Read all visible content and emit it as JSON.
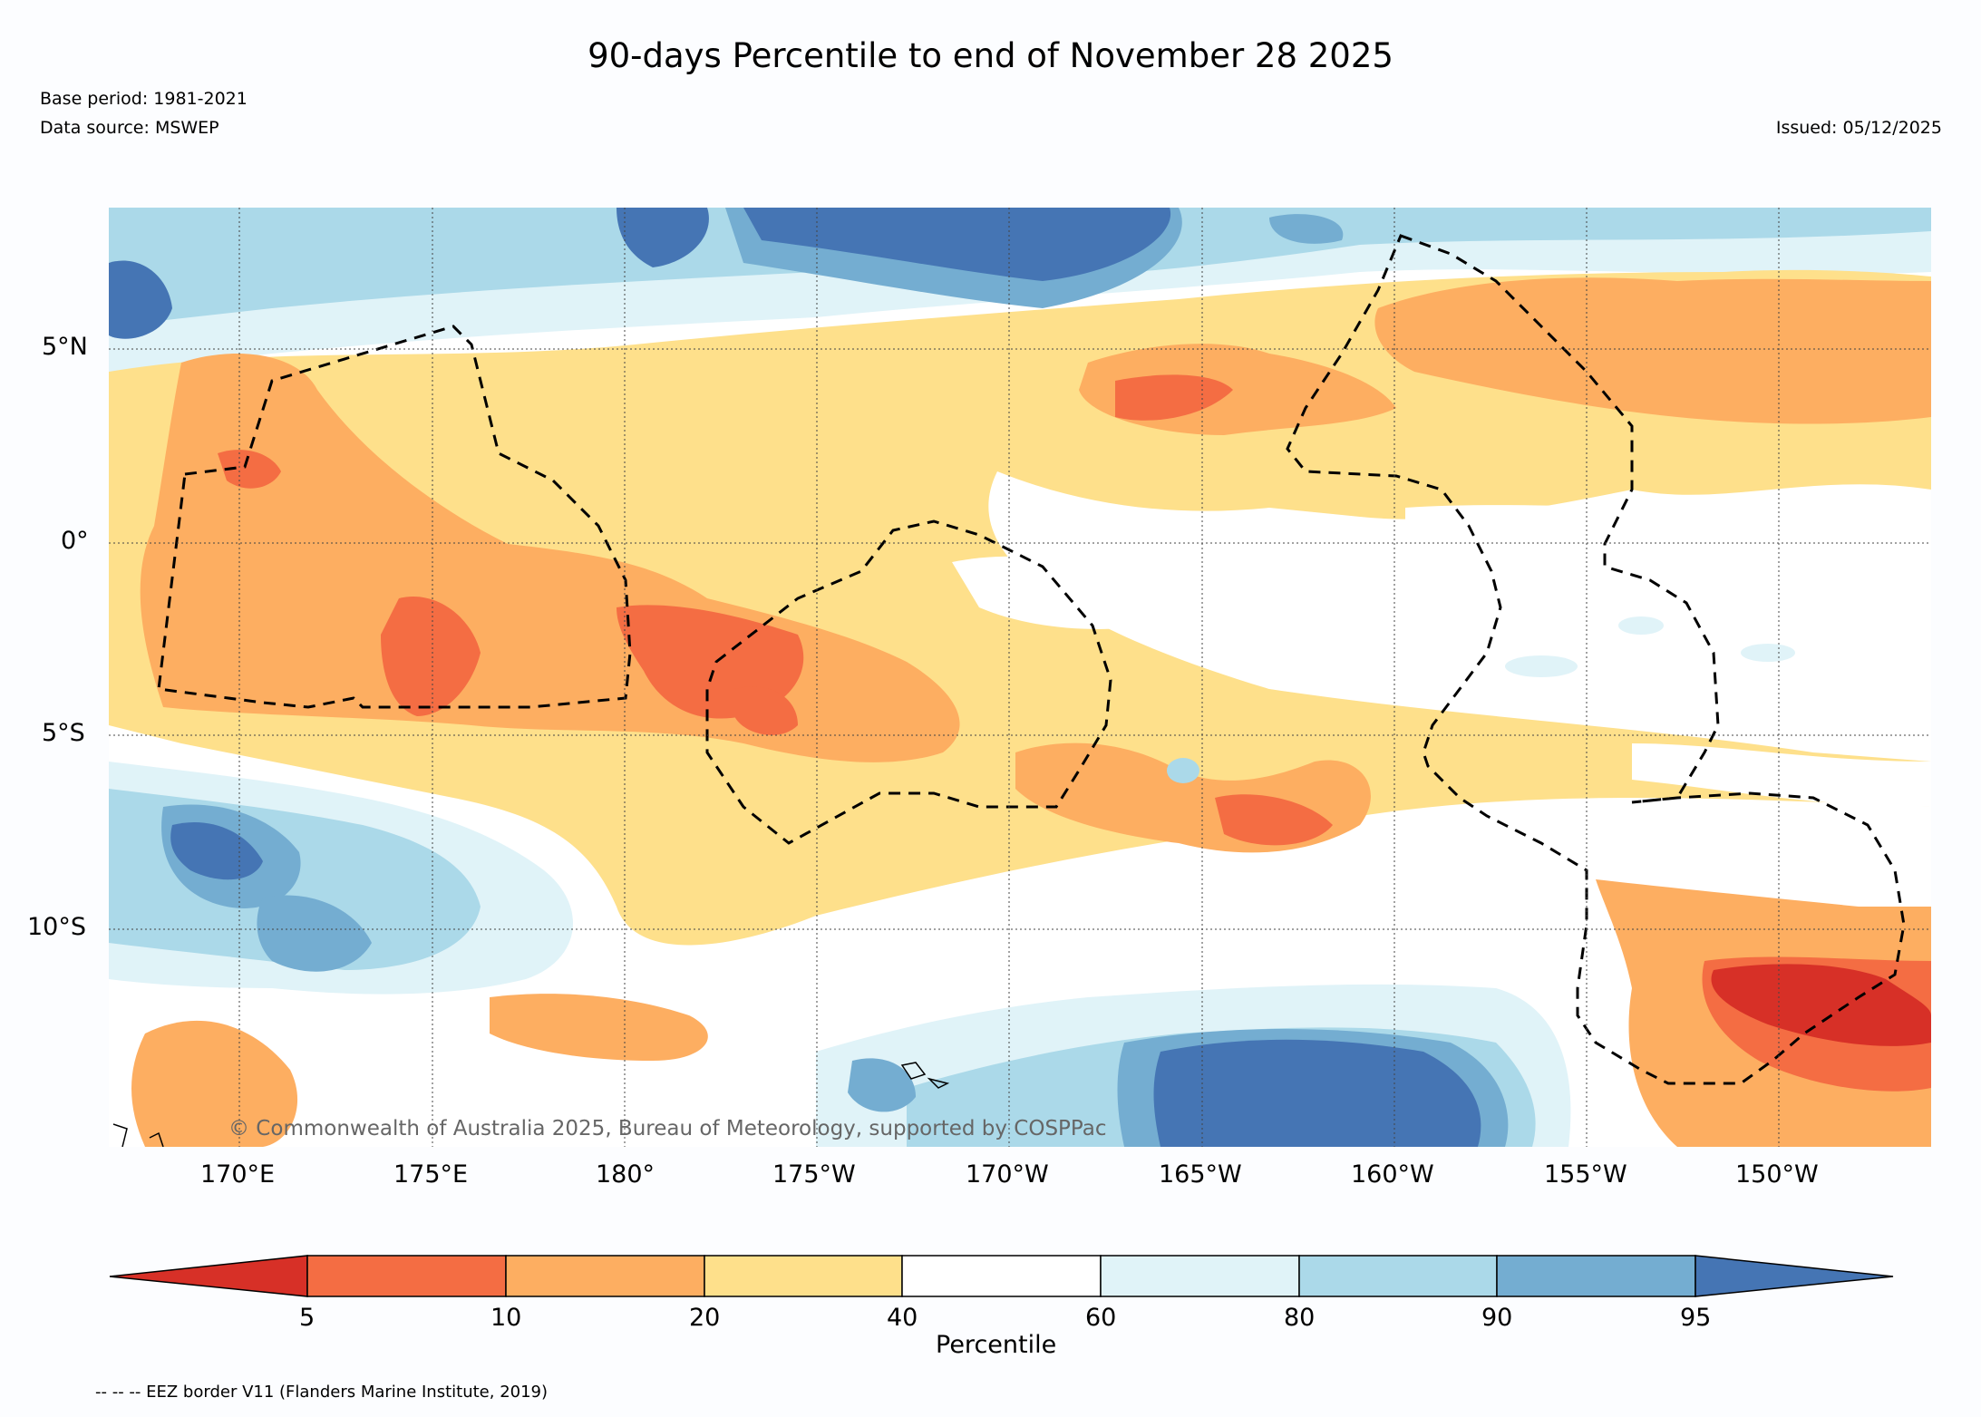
{
  "title": "90-days Percentile to end of November 28 2025",
  "base_period": "Base period: 1981-2021",
  "data_source": "Data source: MSWEP",
  "issued": "Issued: 05/12/2025",
  "copyright": "© Commonwealth of Australia 2025, Bureau of Meteorology, supported by COSPPac",
  "footer_note": "-- -- -- EEZ border V11 (Flanders Marine Institute, 2019)",
  "lat_labels": [
    "5°N",
    "0°",
    "5°S",
    "10°S"
  ],
  "lon_labels": [
    "170°E",
    "175°E",
    "180°",
    "175°W",
    "170°W",
    "165°W",
    "160°W",
    "155°W",
    "150°W"
  ],
  "colorbar": {
    "label": "Percentile",
    "ticks": [
      "5",
      "10",
      "20",
      "40",
      "60",
      "80",
      "90",
      "95"
    ],
    "colors": [
      "#d73027",
      "#f46d43",
      "#fdae61",
      "#fee08b",
      "#ffffff",
      "#e0f3f8",
      "#abd9e9",
      "#74add1",
      "#4575b4"
    ]
  }
}
